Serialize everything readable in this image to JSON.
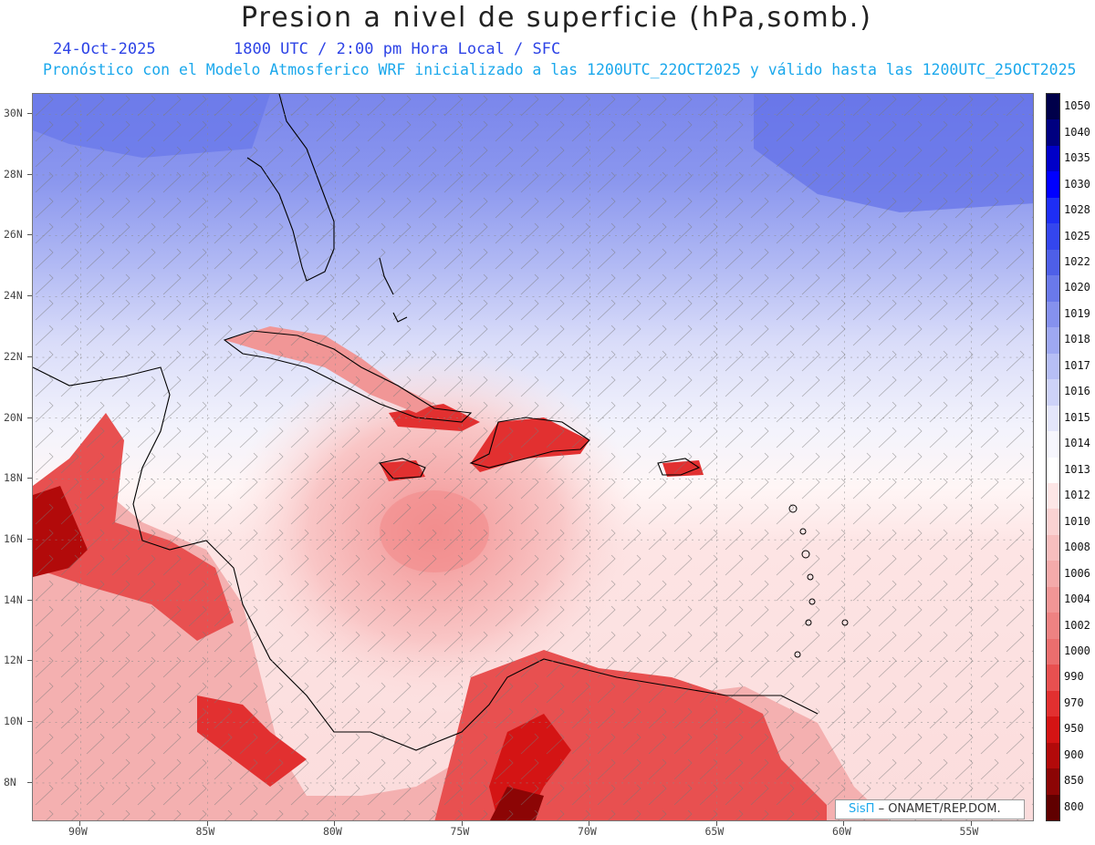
{
  "header": {
    "title": "Presion a nivel de superficie (hPa,somb.)",
    "date": "24-Oct-2025",
    "time": "1800 UTC / 2:00 pm Hora Local / SFC",
    "forecast": "Pronóstico con el Modelo Atmosferico WRF inicializado a las 1200UTC_22OCT2025 y válido hasta las  1200UTC_25OCT2025"
  },
  "map": {
    "lat_labels": [
      "30N",
      "28N",
      "26N",
      "24N",
      "22N",
      "20N",
      "18N",
      "16N",
      "14N",
      "12N",
      "10N",
      "8N"
    ],
    "lon_labels": [
      "90W",
      "85W",
      "80W",
      "75W",
      "70W",
      "65W",
      "60W",
      "55W"
    ]
  },
  "colorbar": {
    "labels": [
      "1050",
      "1040",
      "1035",
      "1030",
      "1028",
      "1025",
      "1022",
      "1020",
      "1019",
      "1018",
      "1017",
      "1016",
      "1015",
      "1014",
      "1013",
      "1012",
      "1010",
      "1008",
      "1006",
      "1004",
      "1002",
      "1000",
      "990",
      "970",
      "950",
      "900",
      "850",
      "800"
    ],
    "colors": [
      "#00004a",
      "#000080",
      "#0000c8",
      "#0000ff",
      "#1e2ef5",
      "#3446ee",
      "#4e5fe8",
      "#6a79ea",
      "#8591ee",
      "#9ea8f2",
      "#b6bef5",
      "#cdd2f8",
      "#e4e6fb",
      "#f6f6fd",
      "#ffffff",
      "#fde6e6",
      "#fad2d2",
      "#f7bebe",
      "#f4aaaa",
      "#f19696",
      "#ee8282",
      "#eb6e6e",
      "#e85050",
      "#e23030",
      "#d41414",
      "#b20a0a",
      "#8c0505",
      "#600000"
    ]
  },
  "credit": {
    "brand": "SisΠ",
    "text": "– ONAMET/REP.DOM."
  }
}
